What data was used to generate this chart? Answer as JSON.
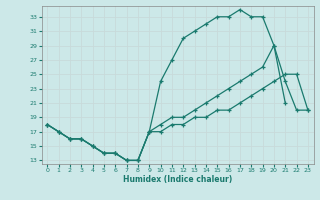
{
  "title": "",
  "xlabel": "Humidex (Indice chaleur)",
  "bg_color": "#cce8e8",
  "grid_color": "#b0d0d0",
  "line_color": "#1a7a6e",
  "xlim": [
    -0.5,
    23.5
  ],
  "ylim": [
    12.5,
    34.5
  ],
  "xticks": [
    0,
    1,
    2,
    3,
    4,
    5,
    6,
    7,
    8,
    9,
    10,
    11,
    12,
    13,
    14,
    15,
    16,
    17,
    18,
    19,
    20,
    21,
    22,
    23
  ],
  "yticks": [
    13,
    15,
    17,
    19,
    21,
    23,
    25,
    27,
    29,
    31,
    33
  ],
  "line1_x": [
    0,
    1,
    2,
    3,
    4,
    5,
    6,
    7,
    8,
    9,
    10,
    11,
    12,
    13,
    14,
    15,
    16,
    17,
    18,
    19,
    20,
    21
  ],
  "line1_y": [
    18,
    17,
    16,
    16,
    15,
    14,
    14,
    13,
    13,
    17,
    24,
    27,
    30,
    31,
    32,
    33,
    33,
    34,
    33,
    33,
    29,
    21
  ],
  "line2_x": [
    0,
    1,
    2,
    3,
    4,
    5,
    6,
    7,
    8,
    9,
    10,
    11,
    12,
    13,
    14,
    15,
    16,
    17,
    18,
    19,
    20,
    21,
    22,
    23
  ],
  "line2_y": [
    18,
    17,
    16,
    16,
    15,
    14,
    14,
    13,
    13,
    17,
    18,
    19,
    19,
    20,
    21,
    22,
    23,
    24,
    25,
    26,
    29,
    24,
    20,
    20
  ],
  "line3_x": [
    0,
    1,
    2,
    3,
    4,
    5,
    6,
    7,
    8,
    9,
    10,
    11,
    12,
    13,
    14,
    15,
    16,
    17,
    18,
    19,
    20,
    21,
    22,
    23
  ],
  "line3_y": [
    18,
    17,
    16,
    16,
    15,
    14,
    14,
    13,
    13,
    17,
    17,
    18,
    18,
    19,
    19,
    20,
    20,
    21,
    22,
    23,
    24,
    25,
    25,
    20
  ]
}
